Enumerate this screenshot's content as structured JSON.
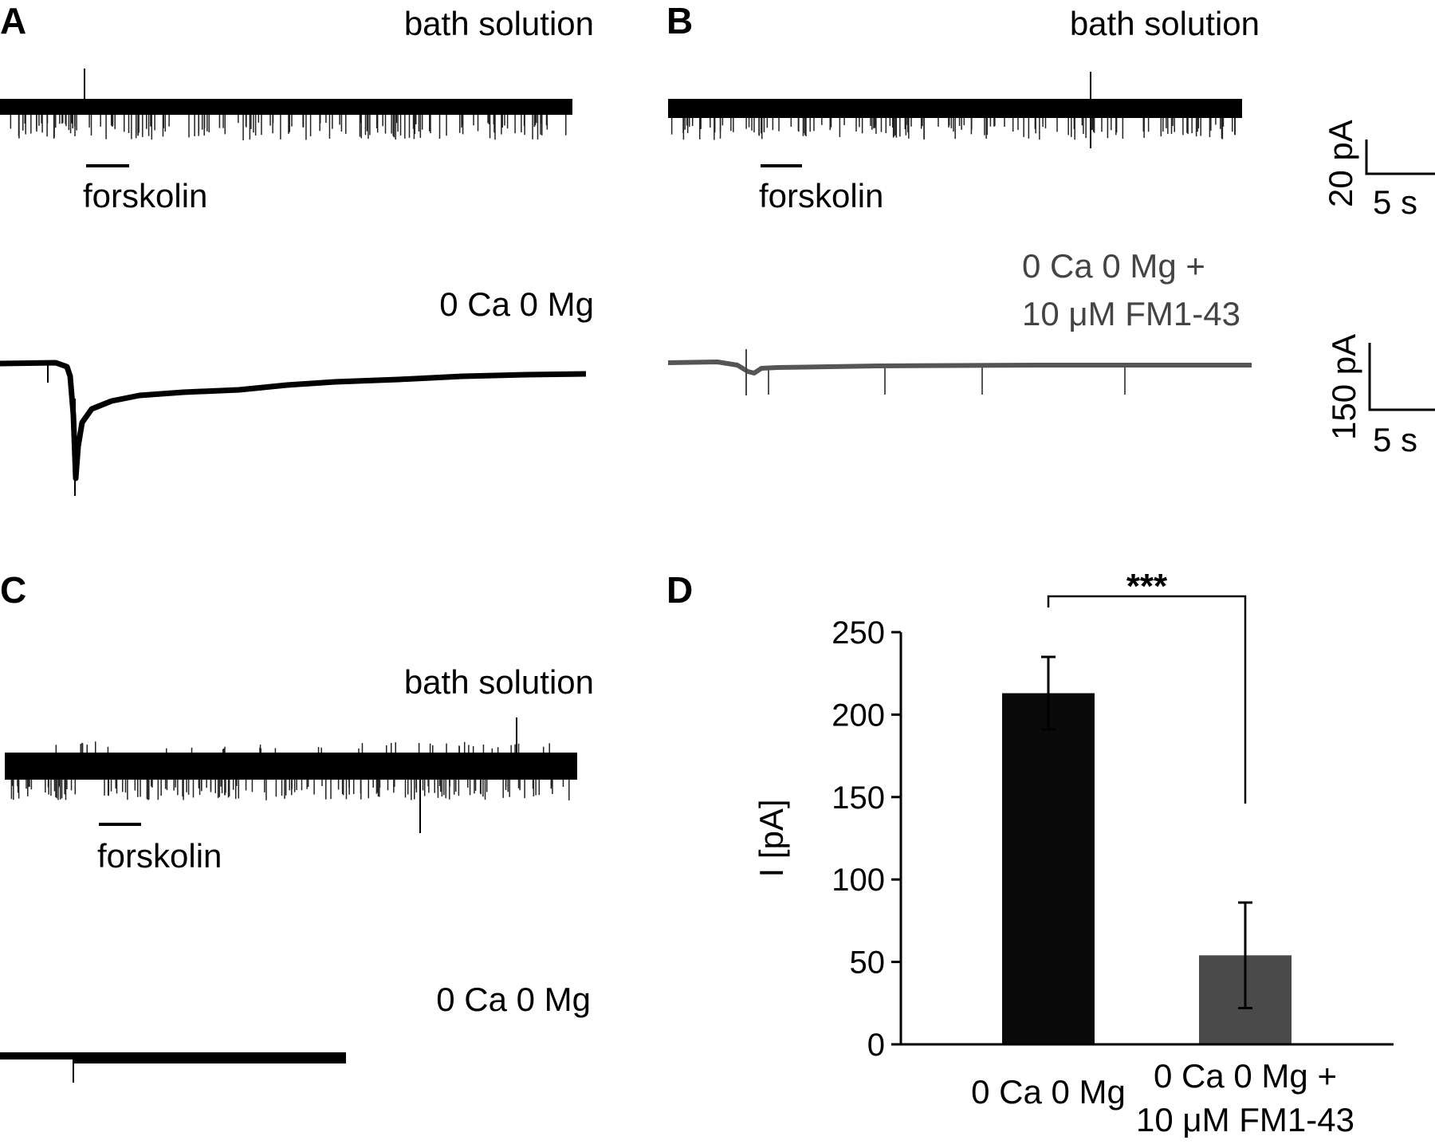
{
  "panels": {
    "A": {
      "label": "A",
      "top_condition": "bath solution",
      "stim_label": "forskolin",
      "bottom_condition": "0 Ca 0 Mg"
    },
    "B": {
      "label": "B",
      "top_condition": "bath solution",
      "stim_label": "forskolin",
      "bottom_condition_line1": "0 Ca 0 Mg +",
      "bottom_condition_line2": "10 μM FM1-43",
      "scale_top_current": "20 pA",
      "scale_top_time": "5 s",
      "scale_bottom_current": "150 pA",
      "scale_bottom_time": "5 s"
    },
    "C": {
      "label": "C",
      "top_condition": "bath solution",
      "stim_label": "forskolin",
      "bottom_condition": "0 Ca 0 Mg"
    }
  },
  "chart_data": {
    "label": "D",
    "type": "bar",
    "categories": [
      "0 Ca 0 Mg",
      "0 Ca 0 Mg + 10 μM FM1-43"
    ],
    "category_lines": [
      [
        "0 Ca 0 Mg"
      ],
      [
        "0 Ca 0 Mg +",
        "10 μM FM1-43"
      ]
    ],
    "values": [
      213,
      54
    ],
    "errors": [
      22,
      32
    ],
    "ylabel": "I [pA]",
    "ylim": [
      0,
      250
    ],
    "yticks": [
      0,
      50,
      100,
      150,
      200,
      250
    ],
    "significance": "***",
    "colors": [
      "#0a0a0a",
      "#4a4a4a"
    ]
  }
}
